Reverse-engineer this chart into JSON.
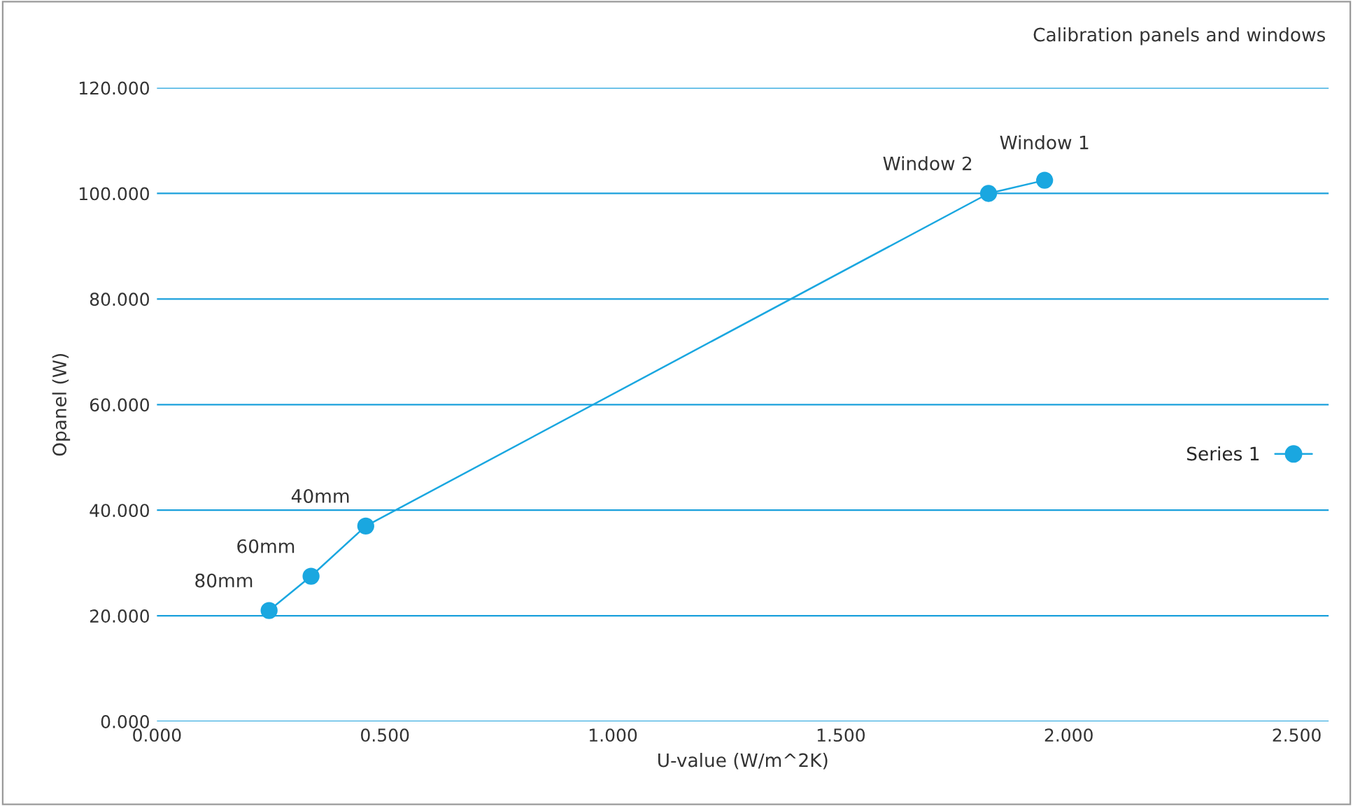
{
  "chart_data": {
    "type": "line",
    "title": "Calibration panels and windows",
    "xlabel": "U-value (W/m^2K)",
    "ylabel": "Opanel (W)",
    "x": [
      0.246,
      0.338,
      0.458,
      1.824,
      1.947
    ],
    "series": [
      {
        "name": "Series 1",
        "color": "#1aa7e0",
        "values": [
          21,
          27.5,
          37,
          100,
          102.5
        ]
      }
    ],
    "marker": "circle",
    "line_style": "solid",
    "grid": "y",
    "legend": "right",
    "xlim": [
      0,
      2.57
    ],
    "xticks": [
      {
        "value": 0,
        "label": "0.000"
      },
      {
        "value": 0.5,
        "label": "0.500"
      },
      {
        "value": 1,
        "label": "1.000"
      },
      {
        "value": 1.5,
        "label": "1.500"
      },
      {
        "value": 2,
        "label": "2.000"
      },
      {
        "value": 2.5,
        "label": "2.500"
      }
    ],
    "ylim": [
      0,
      120
    ],
    "yticks": [
      {
        "value": 0,
        "label": "0.000"
      },
      {
        "value": 20,
        "label": "20.000"
      },
      {
        "value": 40,
        "label": "40.000"
      },
      {
        "value": 60,
        "label": "60.000"
      },
      {
        "value": 80,
        "label": "80.000"
      },
      {
        "value": 100,
        "label": "100.000"
      },
      {
        "value": 120,
        "label": "120.000"
      }
    ],
    "annotations": [
      {
        "text": "80mm",
        "x": 0.246,
        "y": 21
      },
      {
        "text": "60mm",
        "x": 0.338,
        "y": 27.5
      },
      {
        "text": "40mm",
        "x": 0.458,
        "y": 37
      },
      {
        "text": "Window 2",
        "x": 1.824,
        "y": 100
      },
      {
        "text": "Window 1",
        "x": 1.947,
        "y": 102.5
      }
    ]
  }
}
